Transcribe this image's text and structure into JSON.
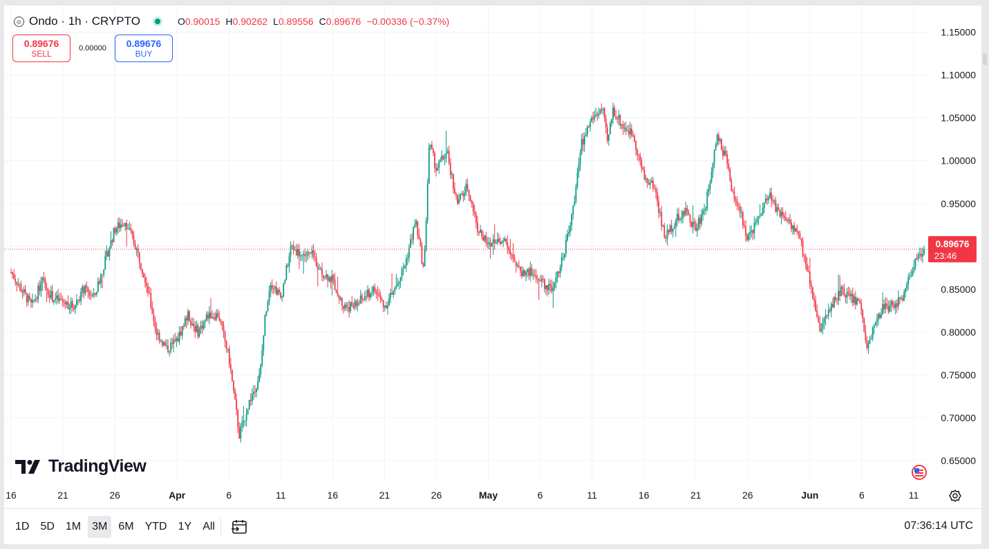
{
  "header": {
    "symbol_icon": "coin-icon",
    "title": "Ondo · 1h · CRYPTO",
    "ohlc": {
      "o_label": "O",
      "o_value": "0.90015",
      "h_label": "H",
      "h_value": "0.90262",
      "l_label": "L",
      "l_value": "0.89556",
      "c_label": "C",
      "c_value": "0.89676",
      "change": "−0.00336 (−0.37%)"
    }
  },
  "trade": {
    "sell_price": "0.89676",
    "sell_label": "SELL",
    "spread": "0.00000",
    "buy_price": "0.89676",
    "buy_label": "BUY"
  },
  "logo": {
    "text": "TradingView"
  },
  "price_tag": {
    "value": "0.89676",
    "countdown": "23:46"
  },
  "toolbar": {
    "ranges": [
      "1D",
      "5D",
      "1M",
      "3M",
      "6M",
      "YTD",
      "1Y",
      "All"
    ],
    "active_range": "3M",
    "clock": "07:36:14 UTC"
  },
  "colors": {
    "up": "#089981",
    "down": "#f23645",
    "grid": "#f0f3fa",
    "accent_buy": "#2962ff",
    "text": "#131722"
  },
  "chart_data": {
    "type": "candlestick",
    "title": "Ondo · 1h · CRYPTO",
    "ylim": [
      0.625,
      1.165
    ],
    "y_ticks": [
      0.65,
      0.7,
      0.75,
      0.8,
      0.85,
      0.9,
      0.95,
      1.0,
      1.05,
      1.1,
      1.15
    ],
    "y_tick_labels": [
      "0.65000",
      "0.70000",
      "0.75000",
      "0.80000",
      "0.85000",
      "0.90000",
      "0.95000",
      "1.00000",
      "1.05000",
      "1.10000",
      "1.15000"
    ],
    "x_day_range": [
      0,
      88.2
    ],
    "x_ticks": [
      {
        "day": 0,
        "label": "16"
      },
      {
        "day": 5,
        "label": "21"
      },
      {
        "day": 10,
        "label": "26"
      },
      {
        "day": 16,
        "label": "Apr"
      },
      {
        "day": 21,
        "label": "6"
      },
      {
        "day": 26,
        "label": "11"
      },
      {
        "day": 31,
        "label": "16"
      },
      {
        "day": 36,
        "label": "21"
      },
      {
        "day": 41,
        "label": "26"
      },
      {
        "day": 46,
        "label": "May"
      },
      {
        "day": 51,
        "label": "6"
      },
      {
        "day": 56,
        "label": "11"
      },
      {
        "day": 61,
        "label": "16"
      },
      {
        "day": 66,
        "label": "21"
      },
      {
        "day": 71,
        "label": "26"
      },
      {
        "day": 77,
        "label": "Jun"
      },
      {
        "day": 82,
        "label": "6"
      },
      {
        "day": 87,
        "label": "11"
      }
    ],
    "bold_x_labels": [
      "Apr",
      "May",
      "Jun"
    ],
    "last_price": 0.89676,
    "close_path": [
      [
        0,
        0.87
      ],
      [
        2,
        0.83
      ],
      [
        3,
        0.86
      ],
      [
        4,
        0.84
      ],
      [
        6,
        0.83
      ],
      [
        7,
        0.85
      ],
      [
        8,
        0.84
      ],
      [
        9,
        0.88
      ],
      [
        10,
        0.92
      ],
      [
        11,
        0.93
      ],
      [
        12,
        0.9
      ],
      [
        13,
        0.86
      ],
      [
        14,
        0.8
      ],
      [
        15,
        0.78
      ],
      [
        16,
        0.79
      ],
      [
        17,
        0.82
      ],
      [
        18,
        0.8
      ],
      [
        19,
        0.82
      ],
      [
        20,
        0.82
      ],
      [
        21,
        0.77
      ],
      [
        22,
        0.68
      ],
      [
        23,
        0.72
      ],
      [
        24,
        0.75
      ],
      [
        24.5,
        0.82
      ],
      [
        25,
        0.86
      ],
      [
        26,
        0.84
      ],
      [
        27,
        0.9
      ],
      [
        28,
        0.89
      ],
      [
        29,
        0.89
      ],
      [
        30,
        0.87
      ],
      [
        31,
        0.86
      ],
      [
        32,
        0.83
      ],
      [
        33,
        0.83
      ],
      [
        34,
        0.84
      ],
      [
        35,
        0.85
      ],
      [
        36,
        0.83
      ],
      [
        37,
        0.85
      ],
      [
        38,
        0.88
      ],
      [
        39,
        0.93
      ],
      [
        39.8,
        0.87
      ],
      [
        40.3,
        1.02
      ],
      [
        41,
        0.99
      ],
      [
        42,
        1.01
      ],
      [
        43,
        0.95
      ],
      [
        44,
        0.97
      ],
      [
        45,
        0.92
      ],
      [
        46,
        0.9
      ],
      [
        47,
        0.91
      ],
      [
        48,
        0.9
      ],
      [
        49,
        0.87
      ],
      [
        50,
        0.87
      ],
      [
        51,
        0.86
      ],
      [
        52,
        0.85
      ],
      [
        53,
        0.88
      ],
      [
        54,
        0.93
      ],
      [
        55,
        1.02
      ],
      [
        56,
        1.05
      ],
      [
        57,
        1.06
      ],
      [
        57.5,
        1.02
      ],
      [
        58,
        1.06
      ],
      [
        59,
        1.04
      ],
      [
        60,
        1.03
      ],
      [
        61,
        0.98
      ],
      [
        62,
        0.97
      ],
      [
        63,
        0.91
      ],
      [
        64,
        0.93
      ],
      [
        65,
        0.94
      ],
      [
        66,
        0.92
      ],
      [
        67,
        0.95
      ],
      [
        68,
        1.03
      ],
      [
        69,
        1.0
      ],
      [
        69.5,
        0.96
      ],
      [
        70,
        0.95
      ],
      [
        71,
        0.91
      ],
      [
        72,
        0.93
      ],
      [
        73,
        0.96
      ],
      [
        74,
        0.94
      ],
      [
        75,
        0.93
      ],
      [
        76,
        0.91
      ],
      [
        77,
        0.86
      ],
      [
        78,
        0.8
      ],
      [
        79,
        0.83
      ],
      [
        80,
        0.85
      ],
      [
        81,
        0.84
      ],
      [
        82,
        0.83
      ],
      [
        82.4,
        0.78
      ],
      [
        83,
        0.8
      ],
      [
        84,
        0.83
      ],
      [
        85,
        0.83
      ],
      [
        86,
        0.84
      ],
      [
        87,
        0.88
      ],
      [
        88,
        0.897
      ]
    ]
  }
}
